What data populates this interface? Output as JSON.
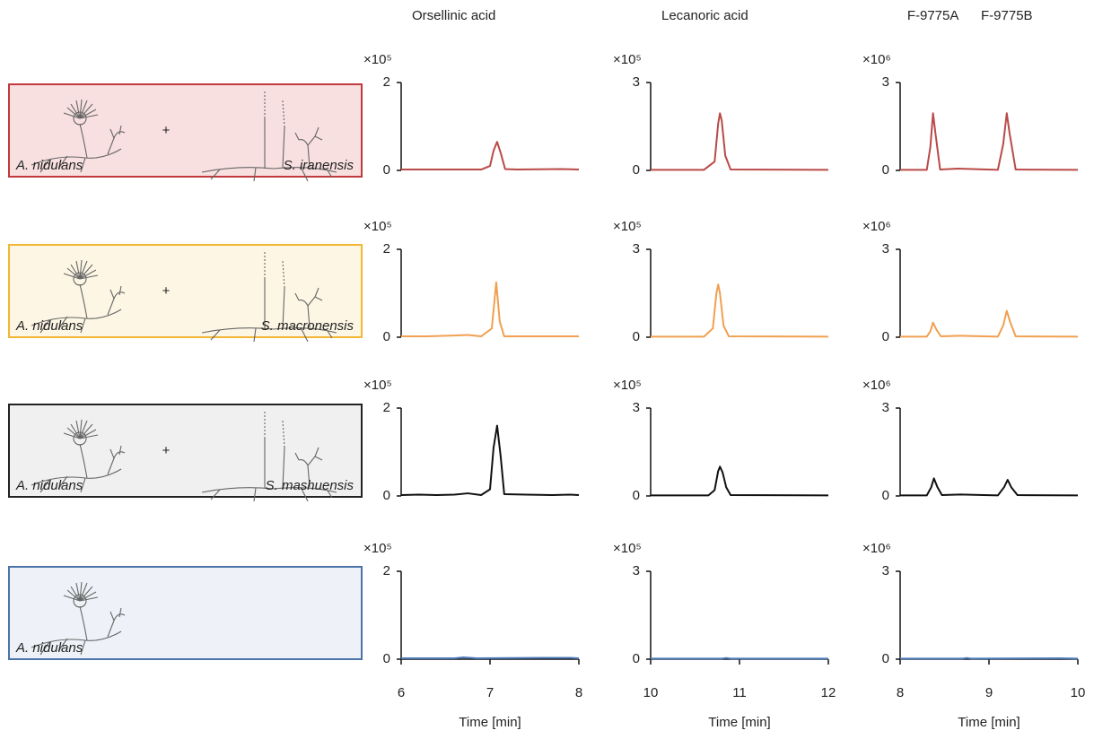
{
  "rows": [
    {
      "labels": [
        "A. nidulans",
        "S. iranensis"
      ],
      "connector": "+",
      "border": "#c0393b",
      "fill": "#f8dfe0"
    },
    {
      "labels": [
        "A. nidulans",
        "S. macronensis"
      ],
      "connector": "+",
      "border": "#f2b632",
      "fill": "#fdf6e4"
    },
    {
      "labels": [
        "A. nidulans",
        "S. mashuensis"
      ],
      "connector": "+",
      "border": "#222222",
      "fill": "#f0f0f0"
    },
    {
      "labels": [
        "A. nidulans"
      ],
      "border": "#4a73a8",
      "fill": "#eef2f8"
    }
  ],
  "chart_data": [
    {
      "type": "line",
      "title": "Orsellinic acid",
      "y_unit": "×10⁵",
      "xlim": [
        6,
        8
      ],
      "ylim": [
        0,
        2
      ],
      "yticks": [
        0,
        2
      ],
      "color": "#b94a48",
      "x": [
        6,
        6.3,
        6.9,
        7.0,
        7.04,
        7.08,
        7.12,
        7.17,
        7.3,
        7.8,
        8
      ],
      "values": [
        0.02,
        0.02,
        0.02,
        0.1,
        0.45,
        0.65,
        0.4,
        0.03,
        0.02,
        0.03,
        0.02
      ]
    },
    {
      "type": "line",
      "title": "Lecanoric acid",
      "y_unit": "×10⁵",
      "xlim": [
        10,
        12
      ],
      "ylim": [
        0,
        3
      ],
      "yticks": [
        0,
        3
      ],
      "color": "#b94a48",
      "x": [
        10,
        10.6,
        10.72,
        10.76,
        10.78,
        10.8,
        10.84,
        10.9,
        12
      ],
      "values": [
        0.02,
        0.02,
        0.3,
        1.6,
        1.95,
        1.7,
        0.5,
        0.03,
        0.02
      ]
    },
    {
      "type": "line",
      "annotations": [
        {
          "text": "F-9775A",
          "x": 8.37
        },
        {
          "text": "F-9775B",
          "x": 9.2
        }
      ],
      "y_unit": "×10⁶",
      "xlim": [
        8,
        10
      ],
      "ylim": [
        0,
        3
      ],
      "yticks": [
        0,
        3
      ],
      "color": "#b94a48",
      "x": [
        8,
        8.3,
        8.34,
        8.37,
        8.4,
        8.45,
        8.65,
        9.1,
        9.16,
        9.2,
        9.23,
        9.3,
        10
      ],
      "values": [
        0.02,
        0.02,
        0.8,
        1.95,
        1.2,
        0.03,
        0.06,
        0.02,
        0.9,
        1.95,
        1.3,
        0.03,
        0.02
      ]
    },
    {
      "type": "line",
      "y_unit": "×10⁵",
      "xlim": [
        6,
        8
      ],
      "ylim": [
        0,
        2
      ],
      "yticks": [
        0,
        2
      ],
      "color": "#f0a050",
      "x": [
        6,
        6.3,
        6.75,
        6.9,
        7.02,
        7.07,
        7.11,
        7.16,
        7.5,
        8
      ],
      "values": [
        0.02,
        0.02,
        0.05,
        0.02,
        0.2,
        1.25,
        0.35,
        0.02,
        0.02,
        0.02
      ]
    },
    {
      "type": "line",
      "y_unit": "×10⁵",
      "xlim": [
        10,
        12
      ],
      "ylim": [
        0,
        3
      ],
      "yticks": [
        0,
        3
      ],
      "color": "#f0a050",
      "x": [
        10,
        10.6,
        10.7,
        10.74,
        10.76,
        10.78,
        10.82,
        10.88,
        12
      ],
      "values": [
        0.02,
        0.02,
        0.3,
        1.5,
        1.8,
        1.5,
        0.4,
        0.03,
        0.02
      ]
    },
    {
      "type": "line",
      "y_unit": "×10⁶",
      "xlim": [
        8,
        10
      ],
      "ylim": [
        0,
        3
      ],
      "yticks": [
        0,
        3
      ],
      "color": "#f0a050",
      "x": [
        8,
        8.3,
        8.34,
        8.37,
        8.41,
        8.46,
        8.67,
        9.1,
        9.16,
        9.2,
        9.24,
        9.3,
        10
      ],
      "values": [
        0.02,
        0.02,
        0.2,
        0.5,
        0.25,
        0.03,
        0.05,
        0.02,
        0.4,
        0.9,
        0.5,
        0.03,
        0.02
      ]
    },
    {
      "type": "line",
      "y_unit": "×10⁵",
      "xlim": [
        6,
        8
      ],
      "ylim": [
        0,
        2
      ],
      "yticks": [
        0,
        2
      ],
      "color": "#111111",
      "x": [
        6,
        6.2,
        6.4,
        6.6,
        6.75,
        6.9,
        7.0,
        7.04,
        7.08,
        7.12,
        7.16,
        7.4,
        7.7,
        7.9,
        8
      ],
      "values": [
        0.02,
        0.03,
        0.02,
        0.03,
        0.06,
        0.02,
        0.15,
        1.1,
        1.6,
        0.9,
        0.04,
        0.03,
        0.02,
        0.03,
        0.02
      ]
    },
    {
      "type": "line",
      "y_unit": "×10⁵",
      "xlim": [
        10,
        12
      ],
      "ylim": [
        0,
        3
      ],
      "yticks": [
        0,
        3
      ],
      "color": "#111111",
      "x": [
        10,
        10.65,
        10.72,
        10.76,
        10.78,
        10.81,
        10.85,
        10.9,
        12
      ],
      "values": [
        0.02,
        0.02,
        0.2,
        0.85,
        1.0,
        0.8,
        0.3,
        0.03,
        0.02
      ]
    },
    {
      "type": "line",
      "y_unit": "×10⁶",
      "xlim": [
        8,
        10
      ],
      "ylim": [
        0,
        3
      ],
      "yticks": [
        0,
        3
      ],
      "color": "#111111",
      "x": [
        8,
        8.3,
        8.35,
        8.38,
        8.42,
        8.47,
        8.68,
        9.1,
        9.17,
        9.21,
        9.25,
        9.32,
        10
      ],
      "values": [
        0.02,
        0.02,
        0.3,
        0.6,
        0.3,
        0.03,
        0.05,
        0.02,
        0.3,
        0.55,
        0.3,
        0.03,
        0.02
      ]
    },
    {
      "type": "line",
      "y_unit": "×10⁵",
      "xlim": [
        6,
        8
      ],
      "ylim": [
        0,
        2
      ],
      "yticks": [
        0,
        2
      ],
      "color": "#4a7ab8",
      "xticks": [
        6,
        7,
        8
      ],
      "xlabel": "Time [min]",
      "x": [
        6,
        6.6,
        6.7,
        6.85,
        7.6,
        7.9,
        8
      ],
      "values": [
        0.02,
        0.02,
        0.04,
        0.02,
        0.03,
        0.03,
        0.02
      ]
    },
    {
      "type": "line",
      "y_unit": "×10⁵",
      "xlim": [
        10,
        12
      ],
      "ylim": [
        0,
        3
      ],
      "yticks": [
        0,
        3
      ],
      "color": "#4a7ab8",
      "xticks": [
        10,
        11,
        12
      ],
      "xlabel": "Time [min]",
      "x": [
        10,
        10.8,
        10.85,
        10.9,
        12
      ],
      "values": [
        0.02,
        0.02,
        0.04,
        0.02,
        0.02
      ]
    },
    {
      "type": "line",
      "y_unit": "×10⁶",
      "xlim": [
        8,
        10
      ],
      "ylim": [
        0,
        3
      ],
      "yticks": [
        0,
        3
      ],
      "color": "#4a7ab8",
      "xticks": [
        8,
        9,
        10
      ],
      "xlabel": "Time [min]",
      "x": [
        8,
        8.7,
        8.75,
        8.8,
        9.8,
        10
      ],
      "values": [
        0.02,
        0.02,
        0.04,
        0.02,
        0.03,
        0.02
      ]
    }
  ]
}
